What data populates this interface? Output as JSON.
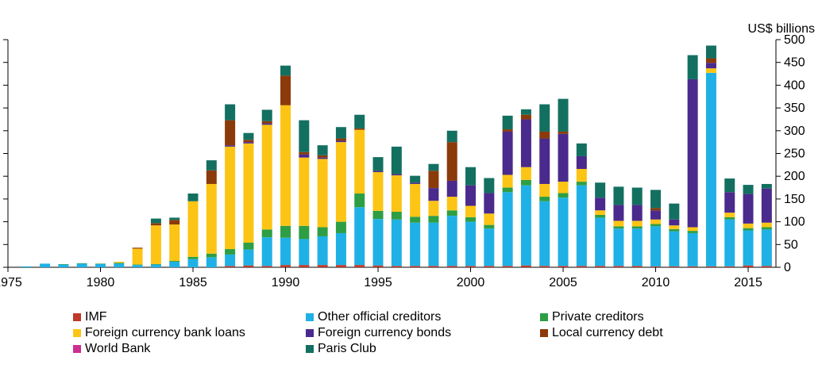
{
  "chart_data": {
    "type": "bar",
    "stacked": true,
    "ylabel": "US$ billions",
    "y_axis_side": "right",
    "ylim": [
      0,
      500
    ],
    "yticks": [
      0,
      50,
      100,
      150,
      200,
      250,
      300,
      350,
      400,
      450,
      500
    ],
    "xlim": [
      1975,
      2016.5
    ],
    "xticks": [
      1975,
      1980,
      1985,
      1990,
      1995,
      2000,
      2005,
      2010,
      2015
    ],
    "categories": [
      1976,
      1977,
      1978,
      1979,
      1980,
      1981,
      1982,
      1983,
      1984,
      1985,
      1986,
      1987,
      1988,
      1989,
      1990,
      1991,
      1992,
      1993,
      1994,
      1995,
      1996,
      1997,
      1998,
      1999,
      2000,
      2001,
      2002,
      2003,
      2004,
      2005,
      2006,
      2007,
      2008,
      2009,
      2010,
      2011,
      2012,
      2013,
      2014,
      2015,
      2016
    ],
    "series": [
      {
        "name": "IMF",
        "color": "#c0392b",
        "values": [
          0,
          0,
          0,
          0,
          0,
          0,
          0,
          0,
          0,
          0,
          0,
          3,
          4,
          3,
          5,
          5,
          5,
          5,
          5,
          4,
          3,
          3,
          3,
          3,
          3,
          3,
          3,
          4,
          3,
          3,
          3,
          3,
          3,
          3,
          2,
          2,
          2,
          2,
          2,
          4,
          3
        ]
      },
      {
        "name": "World Bank",
        "color": "#cc2e8f",
        "values": [
          0,
          0,
          0,
          0,
          0,
          0,
          0,
          0,
          0,
          0,
          0,
          0,
          0,
          0,
          0,
          0,
          0,
          0,
          0,
          0,
          0,
          0,
          0,
          0,
          0,
          0,
          0,
          0,
          0,
          0,
          0,
          0,
          0,
          0,
          0,
          0,
          0,
          0,
          0,
          0,
          0
        ]
      },
      {
        "name": "Other official creditors",
        "color": "#1fb1e6",
        "values": [
          2,
          8,
          6,
          8,
          7,
          8,
          5,
          6,
          12,
          18,
          22,
          25,
          35,
          63,
          60,
          57,
          63,
          70,
          127,
          102,
          102,
          95,
          95,
          110,
          97,
          82,
          162,
          176,
          142,
          150,
          177,
          106,
          82,
          82,
          88,
          77,
          73,
          425,
          103,
          77,
          80
        ]
      },
      {
        "name": "Private creditors",
        "color": "#2e9e44",
        "values": [
          0,
          0,
          1,
          1,
          1,
          2,
          1,
          1,
          2,
          5,
          8,
          12,
          15,
          17,
          26,
          29,
          20,
          25,
          30,
          18,
          17,
          13,
          15,
          12,
          10,
          8,
          10,
          12,
          10,
          10,
          8,
          6,
          5,
          5,
          5,
          5,
          5,
          0,
          5,
          5,
          5
        ]
      },
      {
        "name": "Foreign currency bank loans",
        "color": "#fcc515",
        "values": [
          0,
          0,
          0,
          0,
          0,
          2,
          35,
          85,
          80,
          122,
          153,
          225,
          218,
          230,
          265,
          150,
          150,
          175,
          140,
          85,
          80,
          72,
          33,
          30,
          25,
          25,
          28,
          28,
          28,
          25,
          28,
          10,
          12,
          12,
          10,
          8,
          8,
          10,
          10,
          10,
          10
        ]
      },
      {
        "name": "Foreign currency bonds",
        "color": "#4a2a8c",
        "values": [
          0,
          0,
          0,
          0,
          0,
          0,
          0,
          0,
          0,
          0,
          0,
          3,
          3,
          3,
          0,
          7,
          3,
          3,
          0,
          3,
          3,
          3,
          28,
          35,
          45,
          45,
          95,
          105,
          100,
          105,
          28,
          28,
          35,
          35,
          20,
          13,
          325,
          12,
          45,
          65,
          75
        ]
      },
      {
        "name": "Local currency debt",
        "color": "#8b3a0a",
        "values": [
          0,
          0,
          0,
          0,
          0,
          0,
          2,
          5,
          10,
          0,
          30,
          55,
          5,
          5,
          65,
          5,
          5,
          5,
          3,
          0,
          0,
          0,
          38,
          85,
          0,
          0,
          5,
          10,
          15,
          5,
          0,
          0,
          0,
          0,
          5,
          0,
          0,
          10,
          0,
          0,
          0
        ]
      },
      {
        "name": "Paris Club",
        "color": "#137060",
        "values": [
          0,
          0,
          0,
          0,
          0,
          0,
          0,
          10,
          5,
          17,
          22,
          35,
          15,
          25,
          22,
          70,
          22,
          25,
          30,
          30,
          60,
          15,
          15,
          25,
          40,
          33,
          30,
          12,
          60,
          72,
          28,
          33,
          40,
          38,
          40,
          35,
          53,
          28,
          30,
          20,
          10
        ]
      }
    ]
  }
}
